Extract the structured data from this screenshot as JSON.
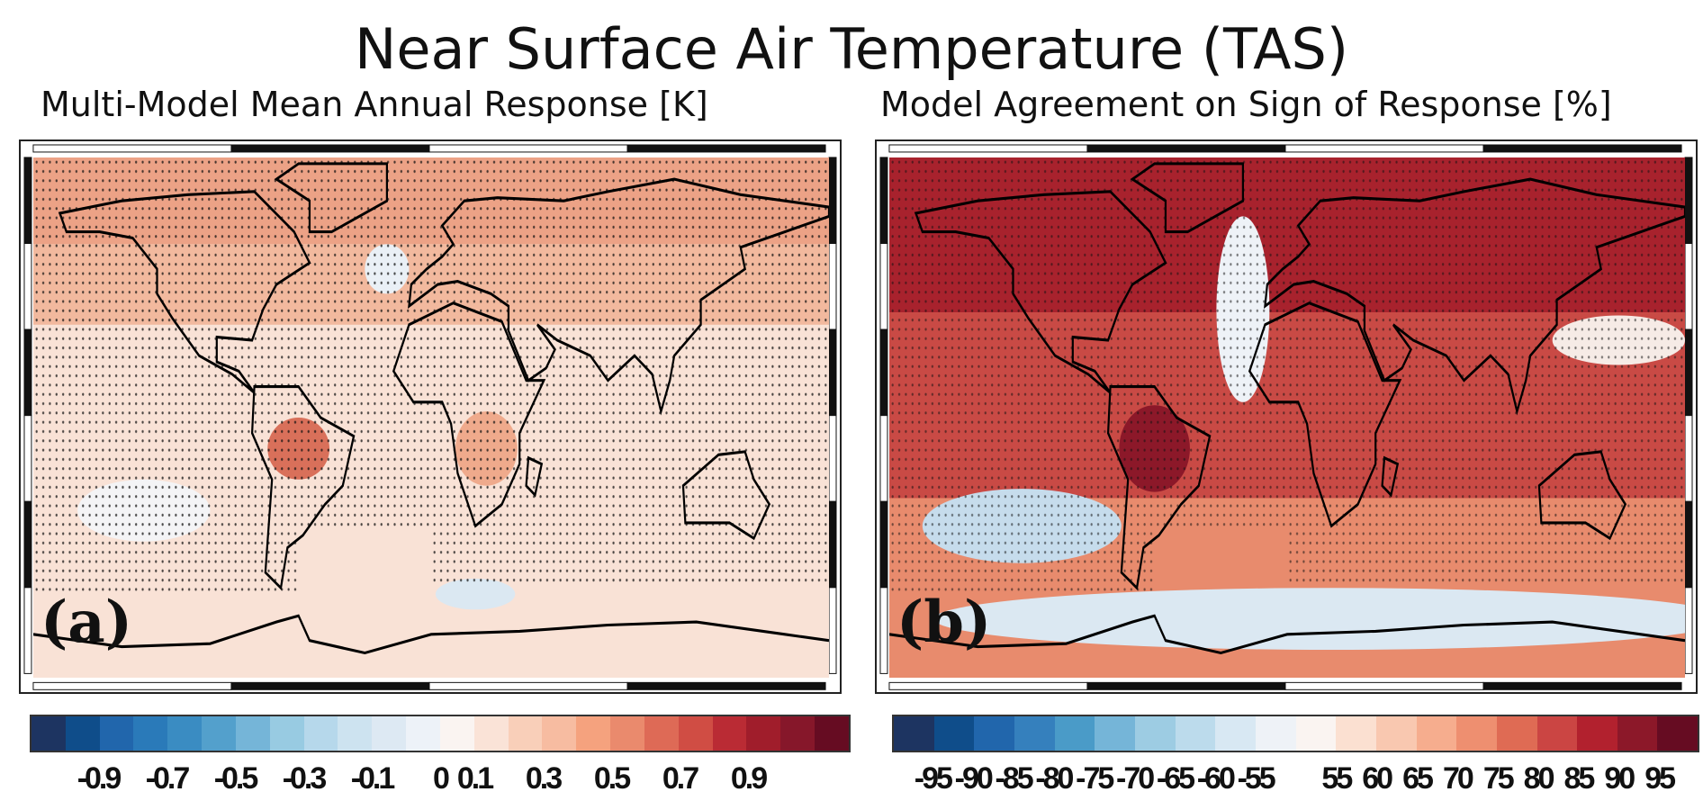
{
  "title": "Near Surface Air Temperature (TAS)",
  "panels": [
    {
      "subtitle": "Multi-Model Mean Annual Response [K]",
      "label": "(a)"
    },
    {
      "subtitle": "Model Agreement on Sign of Response [%]",
      "label": "(b)"
    }
  ],
  "colorbars": [
    {
      "colors": [
        "#1d3461",
        "#0f4d8a",
        "#2166ac",
        "#2a7ab9",
        "#3a8cc2",
        "#53a0cc",
        "#75b5d8",
        "#98cbe2",
        "#b6d8eb",
        "#cde3f0",
        "#dde9f3",
        "#edf2f8",
        "#faf4f1",
        "#fae3d7",
        "#f9cfb9",
        "#f7bca1",
        "#f5a27e",
        "#ea8a6d",
        "#de6a56",
        "#d04d44",
        "#ba2b34",
        "#a01d2b",
        "#86172a",
        "#660c22"
      ],
      "ticks": [
        "-0.9",
        "-0.7",
        "-0.5",
        "-0.3",
        "-0.1",
        "0",
        "0.1",
        "0.3",
        "0.5",
        "0.7",
        "0.9"
      ]
    },
    {
      "colors": [
        "#1d3461",
        "#0f4d8a",
        "#2166ac",
        "#3580bd",
        "#4a9bc8",
        "#75b5d8",
        "#9dcce3",
        "#bcdbec",
        "#d8e8f3",
        "#eef2f7",
        "#faf4f1",
        "#fbe0d1",
        "#f9c8b0",
        "#f6ad8e",
        "#ee8f70",
        "#df6b54",
        "#cb4543",
        "#b2212e",
        "#8c1829",
        "#660c22"
      ],
      "ticks": [
        "-95",
        "-90",
        "-85",
        "-80",
        "-75",
        "-70",
        "-65",
        "-60",
        "-55",
        "55",
        "60",
        "65",
        "70",
        "75",
        "80",
        "85",
        "90",
        "95"
      ]
    }
  ]
}
